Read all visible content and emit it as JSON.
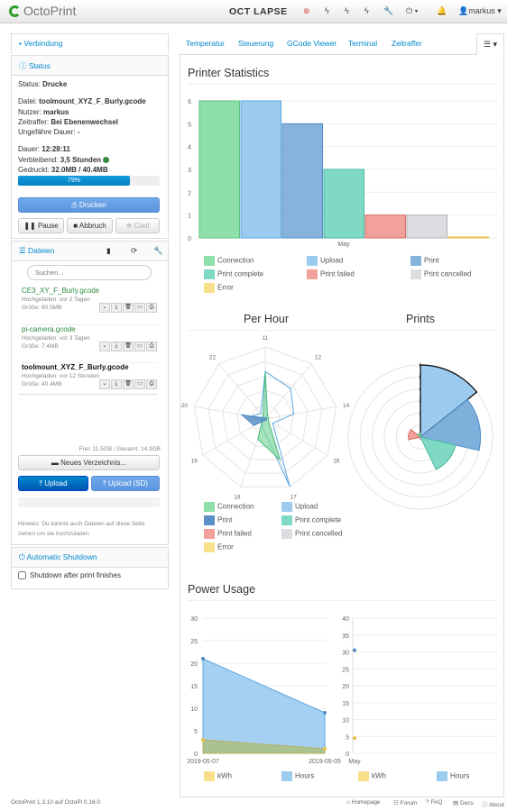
{
  "navbar": {
    "brand": "OctoPrint",
    "octolapse": "OCT   LAPSE",
    "user": "markus"
  },
  "sidebar": {
    "connection": {
      "title": "Verbindung"
    },
    "status": {
      "title": "Status",
      "state_label": "Status:",
      "state_value": "Drucke",
      "file_label": "Datei:",
      "file_value": "toolmount_XYZ_F_Burly.gcode",
      "user_label": "Nutzer:",
      "user_value": "markus",
      "timelapse_label": "Zeitraffer:",
      "timelapse_value": "Bei Ebenenwechsel",
      "approx_label": "Ungefähre Dauer:",
      "approx_value": "-",
      "duration_label": "Dauer:",
      "duration_value": "12:28:11",
      "remaining_label": "Verbleibend:",
      "remaining_value": "3,5 Stunden",
      "printed_label": "Gedruckt:",
      "printed_value": "32.0MB / 40.4MB",
      "progress_text": "79%",
      "progress": 0.79,
      "print_button": "Drucken",
      "pause_button": "Pause",
      "cancel_button": "Abbruch",
      "cool_button": "Cool"
    },
    "files": {
      "title": "Dateien",
      "search_placeholder": "Suchen...",
      "items": [
        {
          "name": "CE3_XY_F_Burly.gcode",
          "uploaded": "Hochgeladen: vor 2 Tagen",
          "size": "Größe: 60.5MB"
        },
        {
          "name": "pi-camera.gcode",
          "uploaded": "Hochgeladen: vor 3 Tagen",
          "size": "Größe: 7.4MB"
        },
        {
          "name": "toolmount_XYZ_F_Burly.gcode",
          "uploaded": "Hochgeladen: vor 12 Stunden",
          "size": "Größe: 40.4MB"
        }
      ],
      "storage": "Frei: 11.5GB / Gesamt: 14.3GB",
      "new_folder": "Neues Verzeichnis...",
      "upload": "Upload",
      "upload_sd": "Upload (SD)",
      "hint": "Hinweis: Du kannst auch Dateien auf diese Seite ziehen um sie hochzuladen"
    },
    "shutdown": {
      "title": "Automatic Shutdown",
      "checkbox_label": "Shutdown after print finishes"
    }
  },
  "tabs": [
    "Temperatur",
    "Steuerung",
    "GCode Viewer",
    "Terminal",
    "Zeitraffer"
  ],
  "stats": {
    "title": "Printer Statistics",
    "per_hour_title": "Per Hour",
    "prints_title": "Prints",
    "power_title": "Power Usage",
    "legend1": [
      "Connection",
      "Upload",
      "Print",
      "Print complete",
      "Print failed",
      "Print cancelled",
      "Error"
    ],
    "legend2": [
      "Connection",
      "Upload",
      "Print",
      "Print complete",
      "Print failed",
      "Print cancelled",
      "Error"
    ],
    "legend3": [
      "kWh",
      "Hours",
      "kWh",
      "Hours"
    ]
  },
  "colors": {
    "connection": "#8ee0a8",
    "upload": "#9ccbf0",
    "print": "#86b3dc",
    "complete": "#7fd9c4",
    "failed": "#f2a09a",
    "cancelled": "#dcdde0",
    "error": "#f8e08a"
  },
  "chart_data": [
    {
      "type": "bar",
      "categories": [
        "May"
      ],
      "series": [
        {
          "name": "Connection",
          "values": [
            6
          ]
        },
        {
          "name": "Upload",
          "values": [
            6
          ]
        },
        {
          "name": "Print",
          "values": [
            5
          ]
        },
        {
          "name": "Print complete",
          "values": [
            3
          ]
        },
        {
          "name": "Print failed",
          "values": [
            1
          ]
        },
        {
          "name": "Print cancelled",
          "values": [
            1
          ]
        },
        {
          "name": "Error",
          "values": [
            0
          ]
        }
      ],
      "ylim": [
        0,
        6
      ],
      "yticks": [
        0,
        1,
        2,
        3,
        4,
        5,
        6
      ]
    },
    {
      "type": "radar",
      "title": "Per Hour",
      "categories": [
        "11",
        "12",
        "14",
        "16",
        "17",
        "18",
        "19",
        "20",
        "22"
      ]
    },
    {
      "type": "polar-area",
      "title": "Prints",
      "rticks": [
        0,
        1,
        2,
        3,
        4,
        5,
        6
      ]
    },
    {
      "type": "area",
      "x": [
        "2019-05-07",
        "2019-05-05"
      ],
      "series": [
        {
          "name": "kWh",
          "values": [
            3,
            1
          ]
        },
        {
          "name": "Hours",
          "values": [
            21,
            9
          ]
        }
      ],
      "ylim": [
        0,
        30
      ],
      "yticks": [
        0,
        5,
        10,
        15,
        20,
        25,
        30
      ]
    },
    {
      "type": "scatter",
      "x": [
        "May"
      ],
      "series": [
        {
          "name": "kWh",
          "values": [
            4.5
          ]
        },
        {
          "name": "Hours",
          "values": [
            30.5
          ]
        }
      ],
      "ylim": [
        0,
        40
      ],
      "yticks": [
        0,
        5,
        10,
        15,
        20,
        25,
        30,
        35,
        40
      ]
    }
  ],
  "footer": {
    "version": "OctoPrint 1.3.10 auf OctoPi 0.16.0",
    "homepage": "Homepage",
    "forum": "Forum",
    "faq": "FAQ",
    "docs": "Docs",
    "about": "About"
  }
}
